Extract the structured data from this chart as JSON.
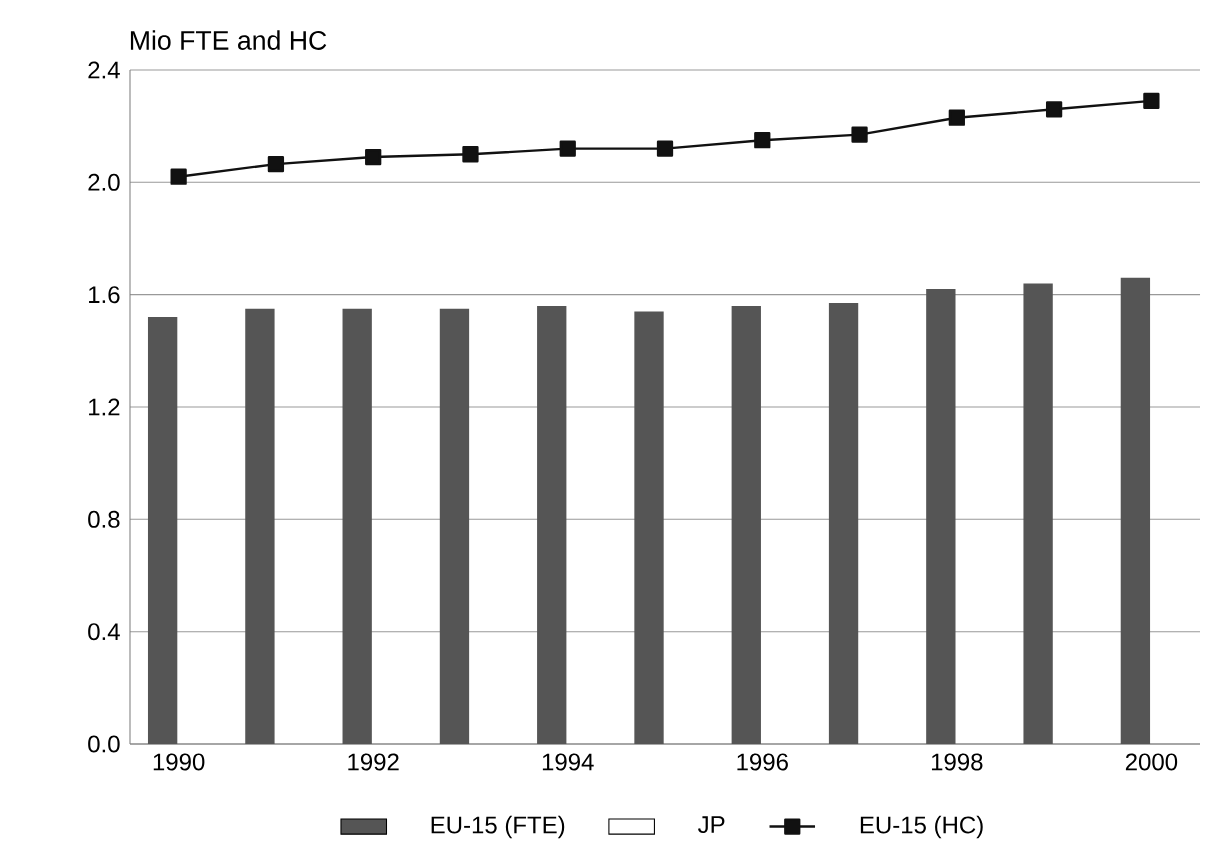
{
  "chart_data": {
    "type": "bar",
    "ylabel": "Mio FTE and HC",
    "categories": [
      "1990",
      null,
      "1992",
      null,
      "1994",
      null,
      "1996",
      null,
      "1998",
      null,
      "2000"
    ],
    "series": [
      {
        "name": "EU-15 (FTE)",
        "color": "#555555",
        "values": [
          1.52,
          1.55,
          1.55,
          1.55,
          1.56,
          1.54,
          1.56,
          1.57,
          1.62,
          1.64,
          1.66
        ]
      },
      {
        "name": "JP",
        "color": "#ffffff",
        "values": [
          null,
          null,
          null,
          null,
          null,
          null,
          null,
          null,
          null,
          null,
          null
        ]
      },
      {
        "name": "EU-15 (HC)",
        "type": "line",
        "color": "#111111",
        "marker": "square",
        "values": [
          2.02,
          2.065,
          2.09,
          2.1,
          2.12,
          2.12,
          2.15,
          2.17,
          2.23,
          2.26,
          2.29
        ]
      }
    ],
    "ylim": [
      0,
      2.4
    ],
    "yticks": [
      {
        "value": 0,
        "label": "0.0"
      },
      {
        "value": 0.4,
        "label": "0.4"
      },
      {
        "value": 0.8,
        "label": "0.8"
      },
      {
        "value": 1.2,
        "label": "1.2"
      },
      {
        "value": 1.6,
        "label": "1.6"
      },
      {
        "value": 2.0,
        "label": "2.0"
      },
      {
        "value": 2.4,
        "label": "2.4"
      }
    ],
    "grid": "y",
    "legend": "bottom"
  }
}
